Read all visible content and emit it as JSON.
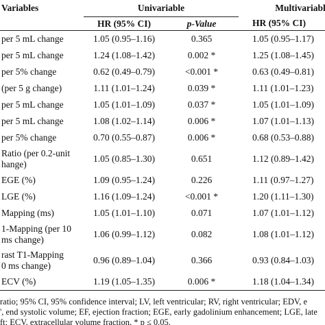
{
  "header": {
    "variable": "Variables",
    "groups": [
      "Univariable",
      "Multivariable"
    ],
    "columns": [
      "HR (95% CI)",
      "p-Value",
      "HR (95% CI)"
    ]
  },
  "table": {
    "rows": [
      [
        "per 5 mL change",
        "1.05 (0.95–1.16)",
        "0.365",
        "1.05 (0.95–1.17)"
      ],
      [
        "per 5 mL change",
        "1.24 (1.08–1.42)",
        "0.002 *",
        "1.25 (1.08–1.45)"
      ],
      [
        "per 5% change",
        "0.62 (0.49–0.79)",
        "<0.001 *",
        "0.63 (0.49–0.81)"
      ],
      [
        "(per 5 g change)",
        "1.11 (1.01–1.24)",
        "0.039 *",
        "1.11 (1.01–1.23)"
      ],
      [
        "per 5 mL change",
        "1.05 (1.01–1.09)",
        "0.037 *",
        "1.05 (1.01–1.09)"
      ],
      [
        "per 5 mL change",
        "1.08 (1.02–1.14)",
        "0.006 *",
        "1.07 (1.01–1.13)"
      ],
      [
        "per 5% change",
        "0.70 (0.55–0.87)",
        "0.006 *",
        "0.68 (0.53–0.88)"
      ],
      [
        "Ratio (per 0.2-unit\nhange)",
        "1.05 (0.85–1.30)",
        "0.651",
        "1.12 (0.89–1.42)"
      ],
      [
        "EGE (%)",
        "1.09 (0.95–1.24)",
        "0.226",
        "1.11 (0.97–1.27)"
      ],
      [
        "LGE (%)",
        "1.16 (1.09–1.24)",
        "<0.001 *",
        "1.20 (1.11–1.30)"
      ],
      [
        "Mapping (ms)",
        "1.05 (1.01–1.10)",
        "0.071",
        "1.07 (1.01–1.12)"
      ],
      [
        "1-Mapping (per 10\nms change)",
        "1.06 (0.99–1.12)",
        "0.082",
        "1.08 (1.01–1.12)"
      ],
      [
        "rast T1-Mapping\n0 ms change)",
        "0.96 (0.89–1.04)",
        "0.366",
        "0.93 (0.84–1.03)"
      ],
      [
        "ECV (%)",
        "1.19 (1.05–1.35)",
        "0.006 *",
        "1.18 (1.04–1.34)"
      ]
    ]
  },
  "footnote": [
    "ratio; 95% CI, 95% confidence interval; LV, left ventricular; RV, right ventricular; EDV, e",
    "', end systolic volume; EF, ejection fraction; EGE, early gadolinium enhancement; LGE, late",
    "ft; ECV, extracellular volume fraction, * p ≤ 0.05."
  ]
}
